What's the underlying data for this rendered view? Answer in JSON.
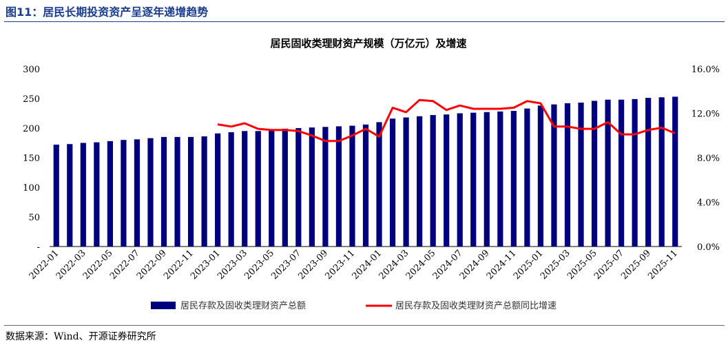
{
  "figure_title": "图11：居民长期投资资产呈逐年递增趋势",
  "source_note": "数据来源：Wind、开源证券研究所",
  "chart_data": {
    "type": "bar+line",
    "title": "居民固收类理财资产规模（万亿元）及增速",
    "left_axis": {
      "ylim": [
        0,
        300
      ],
      "ticks": [
        "-",
        "50",
        "100",
        "150",
        "200",
        "250",
        "300"
      ]
    },
    "right_axis": {
      "ylim": [
        0,
        16
      ],
      "ticks": [
        "0.0%",
        "4.0%",
        "8.0%",
        "12.0%",
        "16.0%"
      ]
    },
    "grid": false,
    "legend_position": "bottom",
    "colors": {
      "bar": "#00007f",
      "line": "#ff0000"
    },
    "x": [
      "2022-01",
      "2022-02",
      "2022-03",
      "2022-04",
      "2022-05",
      "2022-06",
      "2022-07",
      "2022-08",
      "2022-09",
      "2022-10",
      "2022-11",
      "2022-12",
      "2023-01",
      "2023-02",
      "2023-03",
      "2023-04",
      "2023-05",
      "2023-06",
      "2023-07",
      "2023-08",
      "2023-09",
      "2023-10",
      "2023-11",
      "2023-12",
      "2024-01",
      "2024-02",
      "2024-03",
      "2024-04",
      "2024-05",
      "2024-06",
      "2024-07",
      "2024-08",
      "2024-09",
      "2024-10",
      "2024-11",
      "2024-12",
      "2025-01",
      "2025-02",
      "2025-03",
      "2025-04",
      "2025-05",
      "2025-06",
      "2025-07",
      "2025-08",
      "2025-09",
      "2025-10",
      "2025-11"
    ],
    "x_tick_labels": [
      "2022-01",
      "2022-03",
      "2022-05",
      "2022-07",
      "2022-09",
      "2022-11",
      "2023-01",
      "2023-03",
      "2023-05",
      "2023-07",
      "2023-09",
      "2023-11",
      "2024-01",
      "2024-03",
      "2024-05",
      "2024-07",
      "2024-09",
      "2024-11",
      "2025-01",
      "2025-03",
      "2025-05",
      "2025-07",
      "2025-09",
      "2025-11"
    ],
    "series": [
      {
        "name": "居民存款及固收类理财资产总额",
        "type": "bar",
        "axis": "left",
        "values": [
          172,
          173,
          175,
          176,
          178,
          180,
          181,
          183,
          185,
          185,
          185,
          186,
          191,
          193,
          195,
          195,
          198,
          199,
          200,
          201,
          202,
          203,
          204,
          206,
          210,
          216,
          218,
          220,
          222,
          223,
          225,
          226,
          227,
          228,
          229,
          233,
          238,
          240,
          242,
          243,
          246,
          248,
          248,
          249,
          251,
          252,
          253
        ]
      },
      {
        "name": "居民存款及固收类理财资产总额同比增速",
        "type": "line",
        "axis": "right",
        "values": [
          null,
          null,
          null,
          null,
          null,
          null,
          null,
          null,
          null,
          null,
          null,
          null,
          11.0,
          10.8,
          11.1,
          10.6,
          10.5,
          10.5,
          10.4,
          10.0,
          9.5,
          9.5,
          10.0,
          10.6,
          9.9,
          12.5,
          12.1,
          13.2,
          13.1,
          12.3,
          12.7,
          12.4,
          12.4,
          12.4,
          12.5,
          13.1,
          12.9,
          10.8,
          10.8,
          10.6,
          10.6,
          11.2,
          10.1,
          10.1,
          10.5,
          10.7,
          10.2
        ]
      }
    ]
  }
}
